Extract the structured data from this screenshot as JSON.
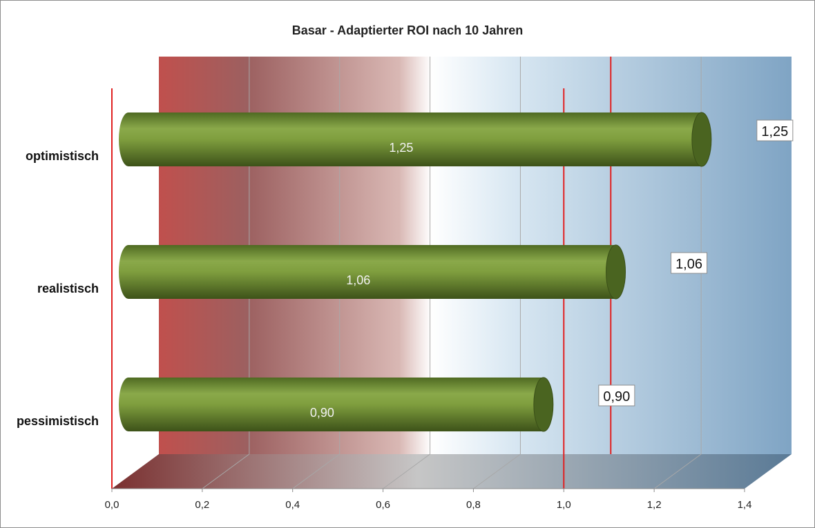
{
  "chart_data": {
    "type": "bar",
    "orientation": "horizontal",
    "style": "3d-cylinder",
    "title": "Basar - Adaptierter ROI nach 10 Jahren",
    "xlabel": "",
    "ylabel": "",
    "categories": [
      "optimistisch",
      "realistisch",
      "pessimistisch"
    ],
    "values": [
      1.25,
      1.06,
      0.9
    ],
    "value_labels": [
      "1,25",
      "1,06",
      "0,90"
    ],
    "xlim": [
      0.0,
      1.4
    ],
    "x_ticks": [
      0.0,
      0.2,
      0.4,
      0.6,
      0.8,
      1.0,
      1.2,
      1.4
    ],
    "x_tick_labels": [
      "0,0",
      "0,2",
      "0,4",
      "0,6",
      "0,8",
      "1,0",
      "1,2",
      "1,4"
    ],
    "grid": true,
    "legend": "none",
    "reference_lines": [
      0.0,
      1.0
    ],
    "colors": {
      "bar": "#7a9a3a",
      "bar_dark": "#4a6420",
      "reference_line": "#e02020",
      "background_low": "#c0504d",
      "background_mid": "#ffffff",
      "background_high": "#7fa4c4"
    }
  }
}
